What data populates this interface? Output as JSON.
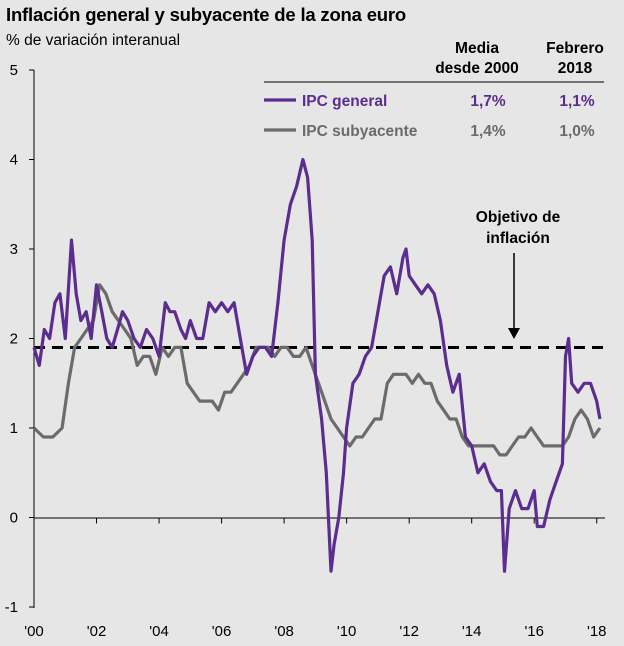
{
  "title": "Inflación general y subyacente de la zona euro",
  "subtitle": "% de variación interanual",
  "colors": {
    "general": "#5b2d8e",
    "subyacente": "#6b6b6b",
    "target": "#000000",
    "background": "#e6e6e6"
  },
  "chart_data": {
    "type": "line",
    "title": "Inflación general y subyacente de la zona euro",
    "ylabel": "% de variación interanual",
    "xlim": [
      2000.0,
      2018.2
    ],
    "ylim": [
      -1,
      5
    ],
    "yticks": [
      5,
      4,
      3,
      2,
      1,
      0,
      -1
    ],
    "ytick_labels": [
      "5",
      "4",
      "3",
      "2",
      "1",
      "0",
      "-1"
    ],
    "xticks": [
      2000,
      2002,
      2004,
      2006,
      2008,
      2010,
      2012,
      2014,
      2016,
      2018
    ],
    "xtick_labels": [
      "'00",
      "'02",
      "'04",
      "'06",
      "'08",
      "'10",
      "'12",
      "'14",
      "'16",
      "'18"
    ],
    "target": {
      "value": 1.9,
      "label_line1": "Objetivo de",
      "label_line2": "inflación"
    },
    "legend": {
      "header_col1_line1": "Media",
      "header_col1_line2": "desde 2000",
      "header_col2_line1": "Febrero",
      "header_col2_line2": "2018",
      "rows": [
        {
          "name": "IPC general",
          "media": "1,7%",
          "febrero": "1,1%"
        },
        {
          "name": "IPC subyacente",
          "media": "1,4%",
          "febrero": "1,0%"
        }
      ]
    },
    "series": [
      {
        "name": "IPC general",
        "x": [
          2000.0,
          2000.17,
          2000.33,
          2000.5,
          2000.67,
          2000.83,
          2001.0,
          2001.2,
          2001.35,
          2001.5,
          2001.67,
          2001.83,
          2002.0,
          2002.17,
          2002.33,
          2002.5,
          2002.67,
          2002.83,
          2003.0,
          2003.2,
          2003.4,
          2003.6,
          2003.8,
          2004.0,
          2004.2,
          2004.35,
          2004.5,
          2004.7,
          2004.85,
          2005.0,
          2005.2,
          2005.4,
          2005.6,
          2005.8,
          2006.0,
          2006.2,
          2006.4,
          2006.6,
          2006.8,
          2007.0,
          2007.2,
          2007.4,
          2007.6,
          2007.8,
          2008.0,
          2008.2,
          2008.4,
          2008.6,
          2008.75,
          2008.9,
          2009.0,
          2009.2,
          2009.35,
          2009.5,
          2009.6,
          2009.75,
          2009.9,
          2010.0,
          2010.2,
          2010.4,
          2010.6,
          2010.8,
          2011.0,
          2011.2,
          2011.4,
          2011.6,
          2011.8,
          2011.9,
          2012.0,
          2012.2,
          2012.4,
          2012.6,
          2012.8,
          2013.0,
          2013.2,
          2013.4,
          2013.6,
          2013.8,
          2014.0,
          2014.2,
          2014.4,
          2014.6,
          2014.8,
          2014.95,
          2015.05,
          2015.2,
          2015.4,
          2015.6,
          2015.8,
          2016.0,
          2016.1,
          2016.3,
          2016.5,
          2016.7,
          2016.9,
          2017.0,
          2017.1,
          2017.2,
          2017.4,
          2017.6,
          2017.8,
          2018.0,
          2018.1
        ],
        "y": [
          1.9,
          1.7,
          2.1,
          2.0,
          2.4,
          2.5,
          2.0,
          3.1,
          2.5,
          2.2,
          2.3,
          2.0,
          2.6,
          2.3,
          2.0,
          1.9,
          2.1,
          2.3,
          2.2,
          2.0,
          1.9,
          2.1,
          2.0,
          1.8,
          2.4,
          2.3,
          2.3,
          2.1,
          2.0,
          2.2,
          2.0,
          2.0,
          2.4,
          2.3,
          2.4,
          2.3,
          2.4,
          2.0,
          1.6,
          1.8,
          1.9,
          1.9,
          1.8,
          2.4,
          3.1,
          3.5,
          3.7,
          4.0,
          3.8,
          3.1,
          1.6,
          1.1,
          0.5,
          -0.6,
          -0.3,
          0.0,
          0.5,
          1.0,
          1.5,
          1.6,
          1.8,
          1.9,
          2.3,
          2.7,
          2.8,
          2.5,
          2.9,
          3.0,
          2.7,
          2.6,
          2.5,
          2.6,
          2.5,
          2.2,
          1.7,
          1.4,
          1.6,
          0.9,
          0.8,
          0.5,
          0.6,
          0.4,
          0.3,
          0.3,
          -0.6,
          0.1,
          0.3,
          0.1,
          0.1,
          0.3,
          -0.1,
          -0.1,
          0.2,
          0.4,
          0.6,
          1.8,
          2.0,
          1.5,
          1.4,
          1.5,
          1.5,
          1.3,
          1.1
        ]
      },
      {
        "name": "IPC subyacente",
        "x": [
          2000.0,
          2000.3,
          2000.6,
          2000.9,
          2001.1,
          2001.3,
          2001.5,
          2001.7,
          2001.9,
          2002.1,
          2002.3,
          2002.5,
          2002.7,
          2002.9,
          2003.1,
          2003.3,
          2003.5,
          2003.7,
          2003.9,
          2004.1,
          2004.3,
          2004.5,
          2004.7,
          2004.9,
          2005.1,
          2005.3,
          2005.5,
          2005.7,
          2005.9,
          2006.1,
          2006.3,
          2006.5,
          2006.7,
          2006.9,
          2007.1,
          2007.3,
          2007.5,
          2007.7,
          2007.9,
          2008.1,
          2008.3,
          2008.5,
          2008.7,
          2008.9,
          2009.1,
          2009.3,
          2009.5,
          2009.7,
          2009.9,
          2010.1,
          2010.3,
          2010.5,
          2010.7,
          2010.9,
          2011.1,
          2011.3,
          2011.5,
          2011.7,
          2011.9,
          2012.1,
          2012.3,
          2012.5,
          2012.7,
          2012.9,
          2013.1,
          2013.3,
          2013.5,
          2013.7,
          2013.9,
          2014.1,
          2014.3,
          2014.5,
          2014.7,
          2014.9,
          2015.1,
          2015.3,
          2015.5,
          2015.7,
          2015.9,
          2016.1,
          2016.3,
          2016.5,
          2016.7,
          2016.9,
          2017.1,
          2017.3,
          2017.5,
          2017.7,
          2017.9,
          2018.1
        ],
        "y": [
          1.0,
          0.9,
          0.9,
          1.0,
          1.5,
          1.9,
          2.0,
          2.1,
          2.2,
          2.6,
          2.5,
          2.3,
          2.2,
          2.1,
          2.0,
          1.7,
          1.8,
          1.8,
          1.6,
          1.9,
          1.8,
          1.9,
          1.9,
          1.5,
          1.4,
          1.3,
          1.3,
          1.3,
          1.2,
          1.4,
          1.4,
          1.5,
          1.6,
          1.7,
          1.9,
          1.9,
          1.9,
          1.8,
          1.9,
          1.9,
          1.8,
          1.8,
          1.9,
          1.7,
          1.5,
          1.3,
          1.1,
          1.0,
          0.9,
          0.8,
          0.9,
          0.9,
          1.0,
          1.1,
          1.1,
          1.5,
          1.6,
          1.6,
          1.6,
          1.5,
          1.6,
          1.5,
          1.5,
          1.3,
          1.2,
          1.1,
          1.1,
          0.9,
          0.8,
          0.8,
          0.8,
          0.8,
          0.8,
          0.7,
          0.7,
          0.8,
          0.9,
          0.9,
          1.0,
          0.9,
          0.8,
          0.8,
          0.8,
          0.8,
          0.9,
          1.1,
          1.2,
          1.1,
          0.9,
          1.0
        ]
      }
    ]
  }
}
